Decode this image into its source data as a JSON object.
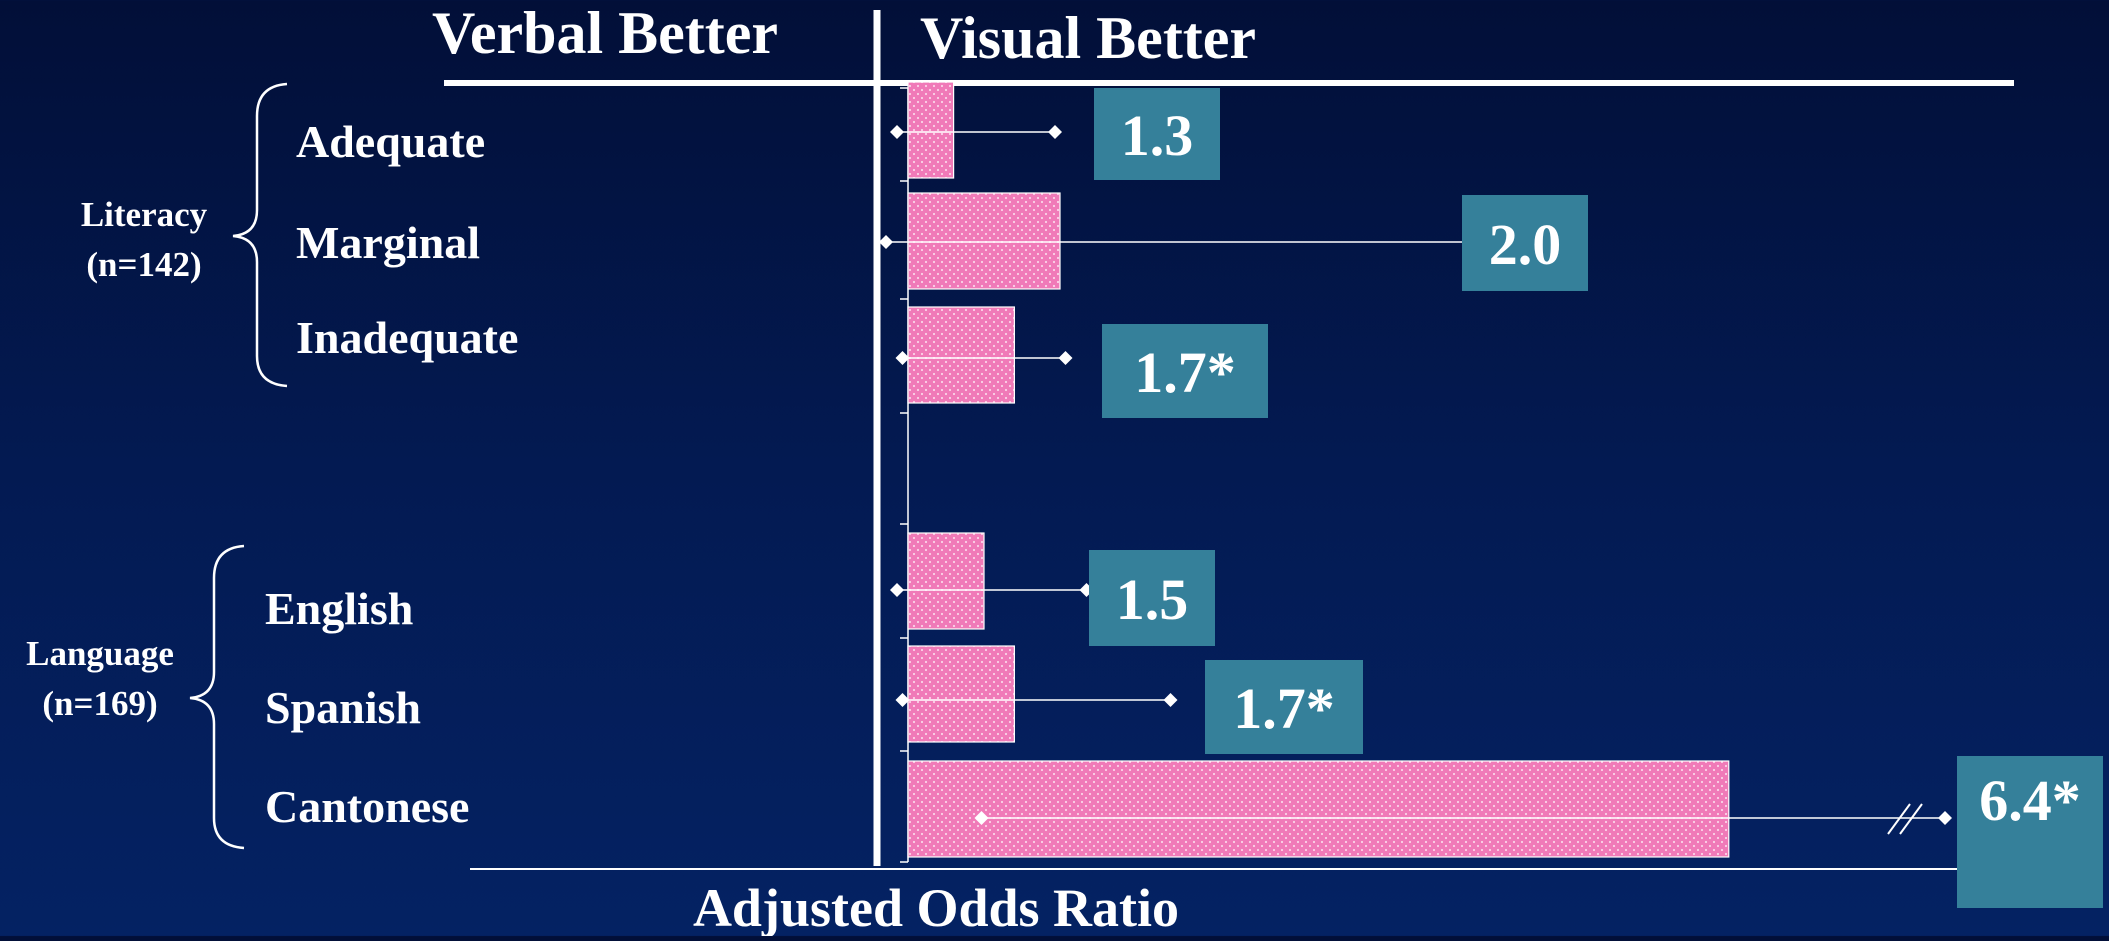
{
  "chart_data": {
    "type": "bar",
    "orientation": "horizontal",
    "header_left": "Verbal Better",
    "header_right": "Visual Better",
    "xlabel": "Adjusted Odds Ratio",
    "groups": [
      {
        "label_line1": "Literacy",
        "label_line2": "(n=142)",
        "categories": [
          "Adequate",
          "Marginal",
          "Inadequate"
        ]
      },
      {
        "label_line1": "Language",
        "label_line2": "(n=169)",
        "categories": [
          "English",
          "Spanish",
          "Cantonese"
        ]
      }
    ],
    "categories": [
      "Adequate",
      "Marginal",
      "Inadequate",
      "English",
      "Spanish",
      "Cantonese"
    ],
    "values": [
      1.3,
      2.0,
      1.7,
      1.5,
      1.7,
      6.4
    ],
    "value_labels": [
      "1.3",
      "2.0",
      "1.7*",
      "1.5",
      "1.7*",
      "6.4*"
    ],
    "ci_lower": [
      0.9,
      0.8,
      0.95,
      0.9,
      0.95,
      1.7
    ],
    "ci_upper": [
      2.4,
      6.5,
      2.5,
      2.7,
      3.5,
      17.0
    ],
    "reference_value": 1.0,
    "significance_marker": "*",
    "colors": {
      "bar": "#f07ab8",
      "bar_dots": "#fbd3e8",
      "label_box": "#35809a",
      "axis": "#ffffff",
      "background": "#031a52"
    }
  }
}
